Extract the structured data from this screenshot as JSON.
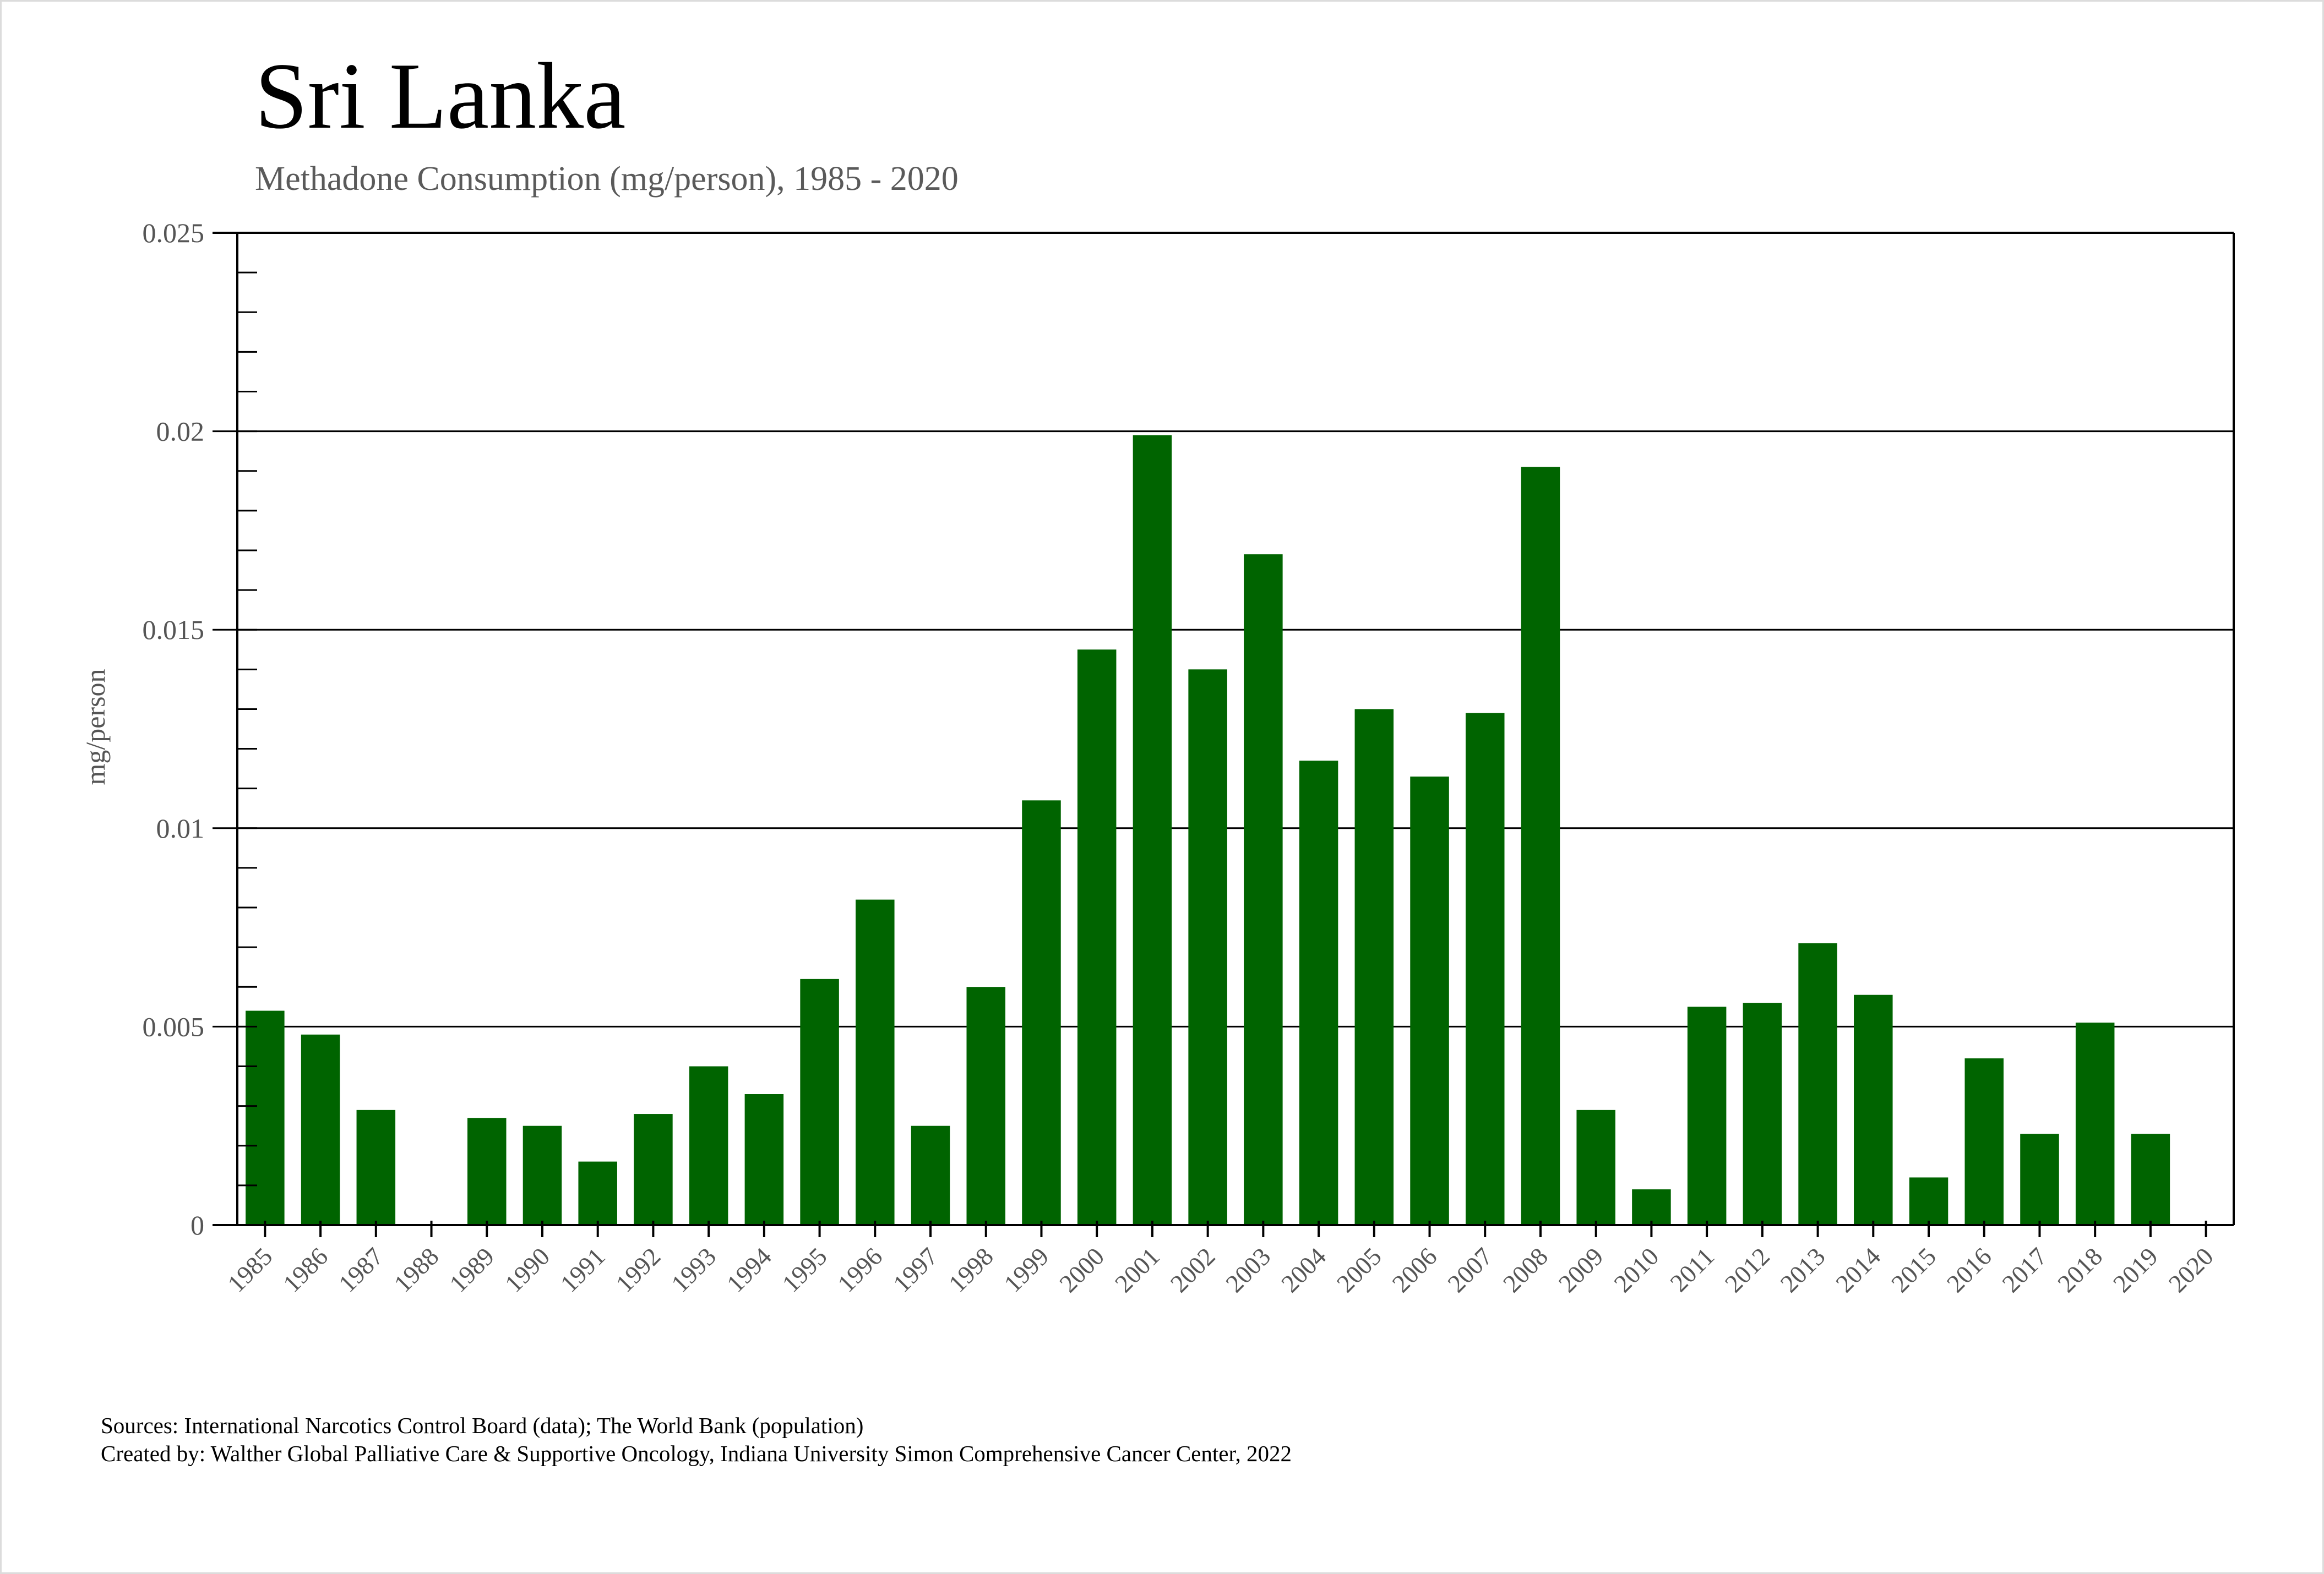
{
  "header": {
    "title": "Sri Lanka",
    "subtitle": "Methadone Consumption (mg/person), 1985 - 2020"
  },
  "footer": {
    "sources": "Sources: International Narcotics Control Board (data); The World Bank (population)",
    "created_by": "Created by: Walther Global Palliative Care & Supportive Oncology, Indiana University Simon Comprehensive Cancer Center, 2022"
  },
  "colors": {
    "bar": "#006400",
    "axis": "#000000",
    "text_muted": "#555555"
  },
  "chart_data": {
    "type": "bar",
    "title": "Sri Lanka",
    "subtitle": "Methadone Consumption (mg/person), 1985 - 2020",
    "xlabel": "",
    "ylabel": "mg/person",
    "ylim": [
      0,
      0.025
    ],
    "yticks": [
      0,
      0.005,
      0.01,
      0.015,
      0.02,
      0.025
    ],
    "ytick_labels": [
      "0",
      "0.005",
      "0.01",
      "0.015",
      "0.02",
      "0.025"
    ],
    "grid": true,
    "legend": "none",
    "categories": [
      "1985",
      "1986",
      "1987",
      "1988",
      "1989",
      "1990",
      "1991",
      "1992",
      "1993",
      "1994",
      "1995",
      "1996",
      "1997",
      "1998",
      "1999",
      "2000",
      "2001",
      "2002",
      "2003",
      "2004",
      "2005",
      "2006",
      "2007",
      "2008",
      "2009",
      "2010",
      "2011",
      "2012",
      "2013",
      "2014",
      "2015",
      "2016",
      "2017",
      "2018",
      "2019",
      "2020"
    ],
    "series": [
      {
        "name": "Methadone Consumption (mg/person)",
        "values": [
          0.0054,
          0.0048,
          0.0029,
          0,
          0.0027,
          0.0025,
          0.0016,
          0.0028,
          0.004,
          0.0033,
          0.0062,
          0.0082,
          0.0025,
          0.006,
          0.0107,
          0.0145,
          0.0199,
          0.014,
          0.0169,
          0.0117,
          0.013,
          0.0113,
          0.0129,
          0.0191,
          0.0029,
          0.0009,
          0.0055,
          0.0056,
          0.0071,
          0.0058,
          0.0012,
          0.0042,
          0.0023,
          0.0051,
          0.0023,
          0
        ]
      }
    ]
  }
}
